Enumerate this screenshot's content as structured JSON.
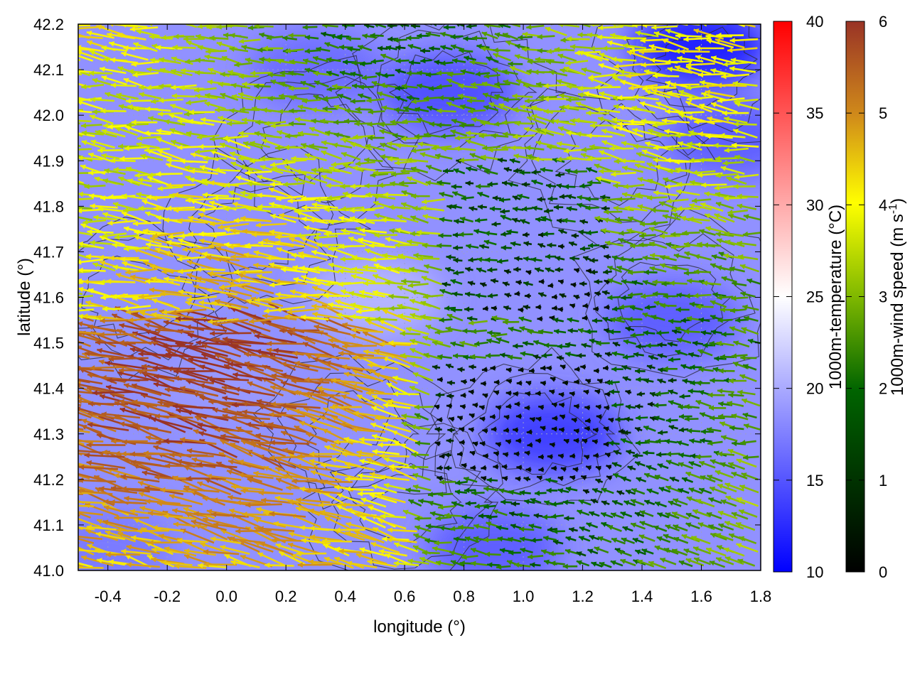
{
  "chart_data": {
    "type": "heatmap",
    "title": "",
    "xlabel": "longitude (°)",
    "ylabel": "latitude (°)",
    "xlim": [
      -0.5,
      1.8
    ],
    "ylim": [
      41.0,
      42.2
    ],
    "xticks": [
      "-0.4",
      "-0.2",
      "0.0",
      "0.2",
      "0.4",
      "0.6",
      "0.8",
      "1.0",
      "1.2",
      "1.4",
      "1.6",
      "1.8"
    ],
    "yticks": [
      "41.0",
      "41.1",
      "41.2",
      "41.3",
      "41.4",
      "41.5",
      "41.6",
      "41.7",
      "41.8",
      "41.9",
      "42.0",
      "42.1",
      "42.2"
    ],
    "grid": true,
    "layers": {
      "field": "1000m-temperature shading (blue to white to red)",
      "vectors": "1000m-wind arrows coloured by speed",
      "contours": "thin dark contour lines"
    },
    "temperature_colorbar": {
      "label": "1000m-temperature (°C)",
      "range": [
        10,
        40
      ],
      "ticks": [
        "10",
        "15",
        "20",
        "25",
        "30",
        "35",
        "40"
      ],
      "colors": [
        "#0000ff",
        "#ffffff",
        "#ff0000"
      ]
    },
    "wind_colorbar": {
      "label": "1000m-wind speed (m s",
      "label_sup": "-1",
      "label_end": ")",
      "range": [
        0,
        6
      ],
      "ticks": [
        "0",
        "1",
        "2",
        "3",
        "4",
        "5",
        "6"
      ],
      "colors": [
        "#000000",
        "#006400",
        "#7fb800",
        "#ffff00",
        "#d08a1a",
        "#993326"
      ]
    },
    "blobs": [
      {
        "lon": 1.6,
        "lat": 42.15,
        "temp": 11
      },
      {
        "lon": 1.1,
        "lat": 41.3,
        "temp": 13
      },
      {
        "lon": 0.75,
        "lat": 42.05,
        "temp": 14
      },
      {
        "lon": 1.5,
        "lat": 41.55,
        "temp": 15
      },
      {
        "lon": 1.7,
        "lat": 41.95,
        "temp": 15
      },
      {
        "lon": 0.3,
        "lat": 42.1,
        "temp": 16
      },
      {
        "lon": -0.4,
        "lat": 41.05,
        "temp": 17
      },
      {
        "lon": 0.9,
        "lat": 41.05,
        "temp": 15
      },
      {
        "lon": 0.5,
        "lat": 41.6,
        "temp": 21
      },
      {
        "lon": 0.0,
        "lat": 41.4,
        "temp": 19
      }
    ],
    "background_temp": 18.5
  }
}
